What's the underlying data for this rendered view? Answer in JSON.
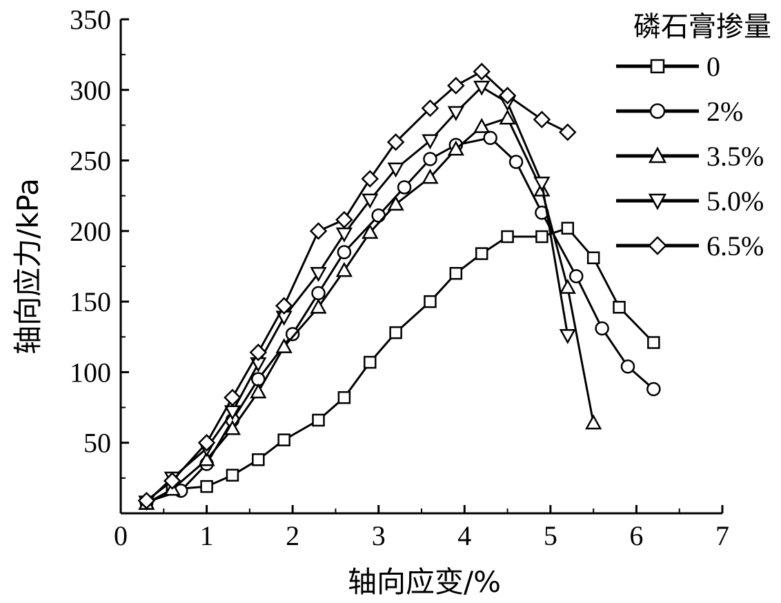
{
  "chart_data": {
    "type": "line",
    "title": "",
    "xlabel": "轴向应变/%",
    "ylabel": "轴向应力/kPa",
    "xlim": [
      0,
      7
    ],
    "ylim": [
      0,
      350
    ],
    "x_ticks": [
      0,
      1,
      2,
      3,
      4,
      5,
      6,
      7
    ],
    "y_ticks": [
      50,
      100,
      150,
      200,
      250,
      300,
      350
    ],
    "grid": false,
    "legend": {
      "title": "磷石膏掺量",
      "position": "top-right"
    },
    "series": [
      {
        "name": "0",
        "marker": "square",
        "x": [
          0.3,
          0.6,
          1.0,
          1.3,
          1.6,
          1.9,
          2.3,
          2.6,
          2.9,
          3.2,
          3.6,
          3.9,
          4.2,
          4.5,
          4.9,
          5.2,
          5.5,
          5.8,
          6.2
        ],
        "y": [
          7,
          17,
          19,
          27,
          38,
          52,
          66,
          82,
          107,
          128,
          150,
          170,
          184,
          196,
          196,
          202,
          181,
          146,
          121
        ]
      },
      {
        "name": "2%",
        "marker": "circle",
        "x": [
          0.3,
          0.7,
          1.0,
          1.3,
          1.6,
          2.0,
          2.3,
          2.6,
          3.0,
          3.3,
          3.6,
          3.9,
          4.3,
          4.6,
          4.9,
          5.3,
          5.6,
          5.9,
          6.2
        ],
        "y": [
          8,
          16,
          35,
          66,
          95,
          127,
          156,
          185,
          211,
          231,
          251,
          261,
          266,
          249,
          213,
          168,
          131,
          104,
          88
        ]
      },
      {
        "name": "3.5%",
        "marker": "triangle-up",
        "x": [
          0.3,
          0.6,
          1.0,
          1.3,
          1.6,
          1.9,
          2.3,
          2.6,
          2.9,
          3.2,
          3.6,
          3.9,
          4.2,
          4.5,
          4.9,
          5.2,
          5.5
        ],
        "y": [
          7,
          17,
          38,
          60,
          86,
          118,
          146,
          172,
          199,
          219,
          238,
          258,
          274,
          280,
          229,
          160,
          64
        ]
      },
      {
        "name": "5.0%",
        "marker": "triangle-down",
        "x": [
          0.3,
          0.6,
          1.0,
          1.3,
          1.6,
          1.9,
          2.3,
          2.6,
          2.9,
          3.2,
          3.6,
          3.9,
          4.2,
          4.5,
          4.9,
          5.2
        ],
        "y": [
          8,
          25,
          46,
          72,
          106,
          139,
          170,
          198,
          222,
          244,
          264,
          284,
          302,
          291,
          234,
          126
        ]
      },
      {
        "name": "6.5%",
        "marker": "diamond",
        "x": [
          0.3,
          0.6,
          1.0,
          1.3,
          1.6,
          1.9,
          2.3,
          2.6,
          2.9,
          3.2,
          3.6,
          3.9,
          4.2,
          4.5,
          4.9,
          5.2
        ],
        "y": [
          9,
          23,
          50,
          82,
          114,
          147,
          200,
          208,
          237,
          263,
          287,
          303,
          313,
          296,
          279,
          270
        ]
      }
    ]
  }
}
